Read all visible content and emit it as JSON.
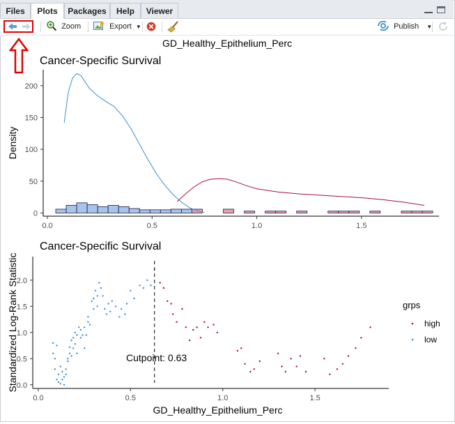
{
  "tabs": [
    {
      "label": "Files",
      "active": false
    },
    {
      "label": "Plots",
      "active": true
    },
    {
      "label": "Packages",
      "active": false
    },
    {
      "label": "Help",
      "active": false
    },
    {
      "label": "Viewer",
      "active": false
    }
  ],
  "toolbar": {
    "zoom_label": "Zoom",
    "export_label": "Export",
    "publish_label": "Publish"
  },
  "plot": {
    "main_title": "GD_Healthy_Epithelium_Perc",
    "top_title": "Cancer-Specific Survival",
    "bottom_title": "Cancer-Specific Survival",
    "cutpoint_label": "Cutpoint: 0.63"
  },
  "colors": {
    "high": "#a50f3c",
    "low": "#3a8fd0",
    "hist_high_fill": "#e8a0b0",
    "hist_low_fill": "#a9c4ea",
    "annotation_red": "#e00000"
  },
  "chart_data": [
    {
      "type": "area",
      "title": "Cancer-Specific Survival",
      "xlabel": "",
      "ylabel": "Density",
      "xlim": [
        -0.02,
        1.87
      ],
      "ylim": [
        -5,
        225
      ],
      "xticks": [
        "0.0",
        "0.5",
        "1.0",
        "1.5"
      ],
      "yticks": [
        "0",
        "50",
        "100",
        "150",
        "200"
      ],
      "series": [
        {
          "color": "low",
          "x": [
            0.08,
            0.1,
            0.12,
            0.14,
            0.16,
            0.18,
            0.2,
            0.24,
            0.28,
            0.32,
            0.36,
            0.4,
            0.44,
            0.48,
            0.52,
            0.56,
            0.6,
            0.64,
            0.68,
            0.72,
            0.75
          ],
          "y": [
            142,
            190,
            212,
            219,
            216,
            206,
            196,
            184,
            175,
            167,
            152,
            132,
            108,
            84,
            62,
            44,
            29,
            17,
            8,
            3,
            1
          ]
        },
        {
          "color": "high",
          "x": [
            0.62,
            0.66,
            0.7,
            0.74,
            0.78,
            0.82,
            0.86,
            0.9,
            0.95,
            1.0,
            1.1,
            1.2,
            1.3,
            1.4,
            1.5,
            1.6,
            1.7,
            1.8
          ],
          "y": [
            18,
            30,
            41,
            49,
            53,
            54,
            53,
            49,
            43,
            38,
            33,
            30,
            28,
            26,
            24,
            21,
            17,
            12
          ]
        }
      ],
      "histogram": {
        "bin_edges": [
          0.04,
          0.09,
          0.14,
          0.19,
          0.24,
          0.29,
          0.34,
          0.39,
          0.44,
          0.49,
          0.54,
          0.59,
          0.64,
          0.69,
          0.74,
          0.79,
          0.84,
          0.89,
          0.94,
          0.99,
          1.04,
          1.09,
          1.14,
          1.19,
          1.24,
          1.29,
          1.34,
          1.39,
          1.44,
          1.49,
          1.54,
          1.59,
          1.64,
          1.69,
          1.74,
          1.79,
          1.84
        ],
        "low_counts": [
          6,
          12,
          16,
          13,
          10,
          12,
          10,
          7,
          5,
          5,
          5,
          6,
          6,
          0,
          0,
          0,
          0,
          0,
          0,
          0,
          0,
          0,
          0,
          0,
          0,
          0,
          0,
          0,
          0,
          0,
          0,
          0,
          0,
          0,
          0,
          0
        ],
        "high_counts": [
          0,
          0,
          0,
          0,
          0,
          0,
          0,
          0,
          0,
          0,
          0,
          0,
          0,
          6,
          0,
          0,
          6,
          0,
          3,
          0,
          3,
          3,
          0,
          3,
          0,
          0,
          3,
          3,
          3,
          0,
          3,
          0,
          0,
          3,
          3,
          3
        ]
      }
    },
    {
      "type": "scatter",
      "title": "Cancer-Specific Survival",
      "xlabel": "GD_Healthy_Epithelium_Perc",
      "ylabel": "Standardized Log-Rank Statistic",
      "xlim": [
        -0.03,
        1.9
      ],
      "ylim": [
        -0.07,
        2.45
      ],
      "xticks": [
        "0.0",
        "0.5",
        "1.0",
        "1.5"
      ],
      "yticks": [
        "0.0",
        "0.5",
        "1.0",
        "1.5",
        "2.0"
      ],
      "cutpoint": 0.63,
      "legend": {
        "title": "grps",
        "position": "right",
        "items": [
          {
            "label": "high",
            "color": "high"
          },
          {
            "label": "low",
            "color": "low"
          }
        ]
      },
      "series": [
        {
          "name": "low",
          "color": "low",
          "points": [
            [
              0.08,
              0.6
            ],
            [
              0.08,
              0.8
            ],
            [
              0.09,
              0.5
            ],
            [
              0.09,
              0.3
            ],
            [
              0.1,
              0.75
            ],
            [
              0.1,
              0.1
            ],
            [
              0.11,
              0.2
            ],
            [
              0.11,
              0.05
            ],
            [
              0.12,
              0.02
            ],
            [
              0.12,
              0.35
            ],
            [
              0.13,
              0.25
            ],
            [
              0.13,
              0.1
            ],
            [
              0.14,
              0.15
            ],
            [
              0.14,
              0.0
            ],
            [
              0.15,
              0.3
            ],
            [
              0.15,
              0.2
            ],
            [
              0.16,
              0.5
            ],
            [
              0.16,
              0.45
            ],
            [
              0.17,
              0.72
            ],
            [
              0.17,
              0.6
            ],
            [
              0.18,
              0.85
            ],
            [
              0.18,
              0.55
            ],
            [
              0.19,
              0.9
            ],
            [
              0.19,
              0.7
            ],
            [
              0.2,
              0.78
            ],
            [
              0.2,
              1.0
            ],
            [
              0.21,
              0.95
            ],
            [
              0.21,
              0.6
            ],
            [
              0.22,
              1.1
            ],
            [
              0.23,
              0.9
            ],
            [
              0.23,
              1.05
            ],
            [
              0.24,
              0.95
            ],
            [
              0.25,
              0.7
            ],
            [
              0.25,
              1.1
            ],
            [
              0.26,
              0.95
            ],
            [
              0.27,
              1.3
            ],
            [
              0.27,
              1.2
            ],
            [
              0.28,
              1.15
            ],
            [
              0.29,
              1.6
            ],
            [
              0.3,
              1.45
            ],
            [
              0.3,
              1.65
            ],
            [
              0.31,
              1.8
            ],
            [
              0.32,
              1.5
            ],
            [
              0.32,
              1.7
            ],
            [
              0.33,
              1.95
            ],
            [
              0.34,
              1.85
            ],
            [
              0.35,
              1.7
            ],
            [
              0.36,
              1.45
            ],
            [
              0.37,
              1.35
            ],
            [
              0.38,
              1.55
            ],
            [
              0.39,
              1.4
            ],
            [
              0.4,
              1.6
            ],
            [
              0.42,
              1.5
            ],
            [
              0.44,
              1.3
            ],
            [
              0.45,
              1.45
            ],
            [
              0.47,
              1.35
            ],
            [
              0.48,
              1.55
            ],
            [
              0.5,
              1.8
            ],
            [
              0.52,
              1.65
            ],
            [
              0.55,
              1.9
            ],
            [
              0.57,
              1.85
            ],
            [
              0.59,
              2.0
            ],
            [
              0.61,
              1.9
            ],
            [
              0.63,
              2.2
            ]
          ]
        },
        {
          "name": "high",
          "color": "high",
          "points": [
            [
              0.66,
              1.95
            ],
            [
              0.68,
              1.85
            ],
            [
              0.7,
              1.6
            ],
            [
              0.72,
              1.55
            ],
            [
              0.73,
              1.35
            ],
            [
              0.75,
              1.2
            ],
            [
              0.78,
              1.45
            ],
            [
              0.8,
              1.1
            ],
            [
              0.82,
              0.85
            ],
            [
              0.84,
              1.05
            ],
            [
              0.86,
              1.1
            ],
            [
              0.88,
              0.9
            ],
            [
              0.9,
              1.2
            ],
            [
              0.92,
              1.1
            ],
            [
              0.95,
              1.15
            ],
            [
              0.97,
              1.0
            ],
            [
              1.08,
              0.65
            ],
            [
              1.1,
              0.7
            ],
            [
              1.12,
              0.4
            ],
            [
              1.15,
              0.25
            ],
            [
              1.17,
              0.3
            ],
            [
              1.2,
              0.45
            ],
            [
              1.3,
              0.6
            ],
            [
              1.32,
              0.35
            ],
            [
              1.34,
              0.25
            ],
            [
              1.37,
              0.5
            ],
            [
              1.4,
              0.35
            ],
            [
              1.42,
              0.55
            ],
            [
              1.45,
              0.25
            ],
            [
              1.55,
              0.5
            ],
            [
              1.58,
              0.2
            ],
            [
              1.62,
              0.3
            ],
            [
              1.65,
              0.4
            ],
            [
              1.68,
              0.55
            ],
            [
              1.72,
              0.7
            ],
            [
              1.75,
              0.9
            ],
            [
              1.8,
              1.1
            ]
          ]
        }
      ]
    }
  ]
}
